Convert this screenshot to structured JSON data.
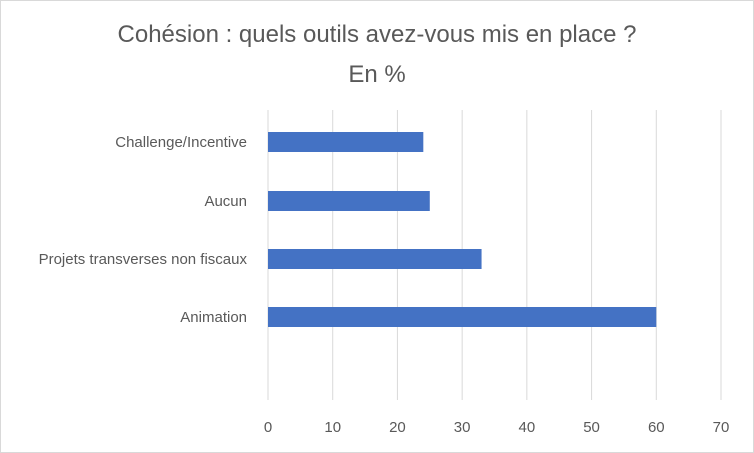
{
  "chart_data": {
    "type": "bar",
    "orientation": "horizontal",
    "title": "Cohésion : quels outils avez-vous mis en place ?",
    "subtitle": "En %",
    "categories": [
      "Challenge/Incentive",
      "Aucun",
      "Projets transverses non fiscaux",
      "Animation"
    ],
    "values": [
      24,
      25,
      33,
      60
    ],
    "xlim": [
      0,
      70
    ],
    "xticks": [
      0,
      10,
      20,
      30,
      40,
      50,
      60,
      70
    ],
    "grid": true,
    "legend": "none",
    "bar_color": "#4472C4",
    "grid_color": "#d9d9d9",
    "text_color": "#595959"
  }
}
